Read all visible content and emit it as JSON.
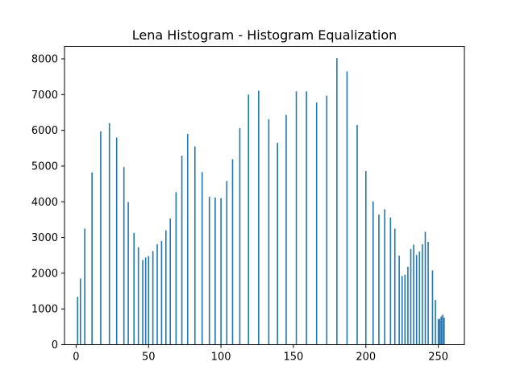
{
  "chart_data": {
    "type": "bar",
    "title": "Lena Histogram - Histogram Equalization",
    "xlabel": "",
    "ylabel": "",
    "xlim": [
      -8,
      268
    ],
    "ylim": [
      0,
      8350
    ],
    "xticks": [
      0,
      50,
      100,
      150,
      200,
      250
    ],
    "yticks": [
      0,
      1000,
      2000,
      3000,
      4000,
      5000,
      6000,
      7000,
      8000
    ],
    "bar_color": "#1f77b4",
    "grid": false,
    "legend": "none",
    "x": [
      1,
      3,
      6,
      11,
      17,
      23,
      28,
      33,
      36,
      40,
      43,
      46,
      48,
      50,
      53,
      56,
      59,
      62,
      65,
      69,
      73,
      77,
      82,
      87,
      92,
      96,
      100,
      104,
      108,
      113,
      119,
      126,
      133,
      139,
      145,
      152,
      159,
      166,
      173,
      180,
      187,
      194,
      200,
      205,
      209,
      213,
      217,
      220,
      223,
      225,
      227,
      229,
      231,
      233,
      235,
      237,
      239,
      241,
      243,
      246,
      248,
      250,
      251,
      252,
      253,
      254
    ],
    "values": [
      1340,
      1850,
      3250,
      4820,
      5970,
      6200,
      5800,
      4970,
      3990,
      3130,
      2730,
      2370,
      2440,
      2480,
      2620,
      2810,
      2900,
      3200,
      3530,
      4270,
      5290,
      5900,
      5550,
      4830,
      4140,
      4120,
      4100,
      4580,
      5190,
      6060,
      7000,
      7110,
      6310,
      5650,
      6430,
      7090,
      7090,
      6780,
      6970,
      8020,
      7650,
      6150,
      4860,
      4010,
      3640,
      3790,
      3560,
      3250,
      2490,
      1920,
      1960,
      2180,
      2680,
      2800,
      2510,
      2610,
      2810,
      3160,
      2880,
      2080,
      1250,
      720,
      720,
      790,
      840,
      760
    ]
  }
}
